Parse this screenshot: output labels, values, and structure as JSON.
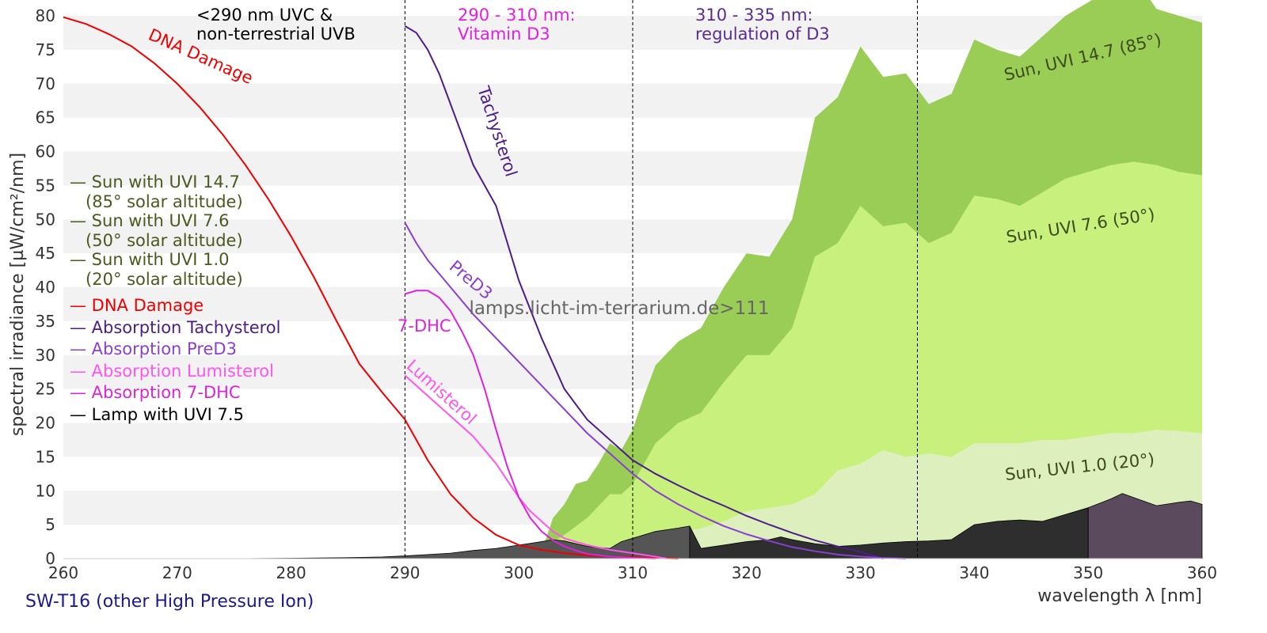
{
  "chart_data": {
    "type": "area",
    "x_range": [
      260,
      360
    ],
    "y_range": [
      0,
      80
    ],
    "x_ticks": [
      260,
      270,
      280,
      290,
      300,
      310,
      320,
      330,
      340,
      350,
      360
    ],
    "y_ticks": [
      0,
      5,
      10,
      15,
      20,
      25,
      30,
      35,
      40,
      45,
      50,
      55,
      60,
      65,
      70,
      75,
      80
    ],
    "xlabel": "wavelength λ [nm]",
    "ylabel": "spectral irradiance [µW/cm²/nm]",
    "grid": "horizontal alternating bands",
    "caption": "SW-T16 (other High Pressure Ion)",
    "watermark": "lamps.licht-im-terrarium.de>111",
    "vlines": [
      290,
      310,
      335
    ],
    "region_labels": [
      {
        "text": [
          "<290 nm UVC &",
          "non-terrestrial UVB"
        ],
        "color": "#000000"
      },
      {
        "text": [
          "290 - 310 nm:",
          "Vitamin D3"
        ],
        "color": "#e020e0"
      },
      {
        "text": [
          "310 - 335 nm:",
          "regulation of D3"
        ],
        "color": "#5a2d8c"
      }
    ],
    "legend": [
      {
        "text": "— Sun with UVI 14.7",
        "color": "#4a5a1e"
      },
      {
        "text": "   (85° solar altitude)",
        "color": "#4a5a1e"
      },
      {
        "text": "— Sun with UVI 7.6",
        "color": "#4a5a1e"
      },
      {
        "text": "   (50° solar altitude)",
        "color": "#4a5a1e"
      },
      {
        "text": "— Sun with UVI 1.0",
        "color": "#4a5a1e"
      },
      {
        "text": "   (20° solar altitude)",
        "color": "#4a5a1e"
      },
      {
        "text": "— DNA Damage",
        "color": "#ee0000"
      },
      {
        "text": "— Absorption Tachysterol",
        "color": "#4b1d8a"
      },
      {
        "text": "— Absorption PreD3",
        "color": "#8a3fd0"
      },
      {
        "text": "— Absorption Lumisterol",
        "color": "#ff55ee"
      },
      {
        "text": "— Absorption 7-DHC",
        "color": "#dd22dd"
      },
      {
        "text": "— Lamp with UVI 7.5",
        "color": "#000000"
      }
    ],
    "sun_areas": [
      {
        "name": "Sun, UVI 14.7 (85°)",
        "color": "#9acd55",
        "x": [
          302,
          303,
          304,
          305,
          306,
          307,
          308,
          309,
          310,
          311,
          312,
          314,
          316,
          318,
          320,
          322,
          324,
          326,
          328,
          330,
          332,
          334,
          336,
          338,
          340,
          342,
          344,
          346,
          348,
          350,
          352,
          354,
          356,
          358,
          360
        ],
        "y": [
          1,
          6,
          8,
          11,
          11.5,
          14,
          17,
          16,
          19,
          24,
          28.5,
          32,
          34,
          40,
          45,
          44.5,
          50,
          65,
          68,
          75.5,
          71,
          71.5,
          67,
          68.5,
          76.5,
          75,
          74,
          77,
          80,
          82,
          84,
          86,
          81,
          80,
          79
        ]
      },
      {
        "name": "Sun, UVI 7.6 (50°)",
        "color": "#c8f07c",
        "x": [
          298,
          300,
          302,
          304,
          306,
          308,
          309,
          310,
          312,
          314,
          316,
          318,
          320,
          322,
          324,
          326,
          328,
          330,
          332,
          334,
          336,
          338,
          340,
          342,
          344,
          346,
          348,
          350,
          352,
          354,
          356,
          358,
          360
        ],
        "y": [
          0,
          0.5,
          1.5,
          3.5,
          6,
          9.5,
          9.5,
          11,
          17,
          20,
          21.5,
          26,
          30,
          30,
          34,
          44.5,
          46.5,
          52,
          49,
          49.5,
          46.5,
          48,
          53.5,
          53,
          52,
          54,
          56,
          57,
          58,
          58.5,
          58,
          57,
          56.5
        ]
      },
      {
        "name": "Sun, UVI 1.0 (20°)",
        "color": "#dcefbc",
        "x": [
          300,
          302,
          304,
          306,
          308,
          310,
          312,
          314,
          316,
          318,
          320,
          322,
          324,
          326,
          328,
          330,
          332,
          334,
          336,
          338,
          340,
          342,
          344,
          346,
          348,
          350,
          352,
          354,
          356,
          358,
          360
        ],
        "y": [
          0,
          0.3,
          0.7,
          1.2,
          1.8,
          2.5,
          3.2,
          3.8,
          4.5,
          5.5,
          7,
          7.5,
          8,
          9.5,
          13,
          14,
          16,
          15,
          15.5,
          15,
          17,
          17,
          17,
          17.5,
          17.5,
          18,
          18.5,
          18.5,
          19,
          18.8,
          18.5
        ]
      }
    ],
    "sun_area_labels": [
      "Sun, UVI 14.7 (85°)",
      "Sun, UVI 7.6 (50°)",
      "Sun, UVI 1.0 (20°)"
    ],
    "lamp": {
      "name": "Lamp with UVI 7.5",
      "x": [
        275,
        280,
        285,
        288,
        290,
        292,
        294,
        296,
        298,
        300,
        302,
        303,
        304,
        306,
        308,
        309,
        310,
        312,
        314,
        315,
        316,
        318,
        320,
        322,
        323,
        324,
        326,
        328,
        330,
        332,
        334,
        336,
        338,
        340,
        342,
        344,
        346,
        348,
        350,
        352,
        353,
        354,
        356,
        358,
        359,
        360
      ],
      "y": [
        0,
        0.05,
        0.15,
        0.25,
        0.4,
        0.6,
        0.8,
        1.2,
        1.5,
        2,
        2.5,
        2.8,
        2.6,
        1.8,
        1.5,
        2.5,
        3,
        4,
        4.5,
        4.8,
        1.5,
        2,
        2.5,
        2.8,
        3.2,
        2.8,
        2.2,
        1.8,
        2,
        2.3,
        2.5,
        2.6,
        2.8,
        5,
        5.5,
        5.7,
        5.5,
        6.5,
        7.5,
        8.8,
        9.6,
        9,
        7.8,
        8.3,
        8.5,
        8
      ]
    },
    "curves": [
      {
        "name": "DNA Damage",
        "color": "#ee0000",
        "x": [
          260,
          262,
          264,
          266,
          268,
          270,
          272,
          274,
          276,
          278,
          280,
          282,
          284,
          286,
          288,
          290,
          292,
          294,
          296,
          298,
          300,
          302,
          304,
          306,
          308,
          310,
          312,
          314
        ],
        "y": [
          79.8,
          78.8,
          77.3,
          75.5,
          73,
          70,
          66.5,
          62.5,
          58,
          53,
          47.5,
          41.5,
          35,
          28.7,
          24.5,
          20.5,
          14.5,
          9.5,
          6,
          3.5,
          2,
          1.3,
          0.8,
          0.5,
          0.3,
          0.2,
          0.1,
          0
        ]
      },
      {
        "name": "Absorption Tachysterol",
        "color": "#4b1d8a",
        "x": [
          290,
          291,
          292,
          293,
          294,
          295,
          296,
          297,
          298,
          299,
          300,
          302,
          304,
          306,
          308,
          310,
          312,
          314,
          316,
          318,
          320,
          322,
          324,
          326,
          328,
          330,
          332
        ],
        "y": [
          78.5,
          77.5,
          75,
          71.5,
          67,
          62.5,
          58,
          55,
          52,
          46.5,
          41,
          32.5,
          25,
          20.5,
          17.5,
          14.5,
          12.5,
          10.8,
          9.2,
          7.8,
          6.3,
          5,
          3.8,
          2.7,
          1.8,
          1,
          0
        ]
      },
      {
        "name": "Absorption PreD3",
        "color": "#8a3fd0",
        "x": [
          290,
          291,
          292,
          293,
          294,
          296,
          298,
          300,
          302,
          304,
          306,
          308,
          310,
          312,
          314,
          316,
          318,
          320,
          322,
          324,
          326,
          328,
          330,
          332,
          334
        ],
        "y": [
          49.5,
          46.5,
          44,
          42,
          40,
          36,
          32.5,
          29,
          25.5,
          22,
          18.5,
          15.5,
          12.5,
          10,
          8,
          6.3,
          4.8,
          3.6,
          2.6,
          1.7,
          1.1,
          0.6,
          0.3,
          0.1,
          0
        ]
      },
      {
        "name": "Absorption Lumisterol",
        "color": "#ff55ee",
        "x": [
          290,
          291,
          292,
          293,
          294,
          295,
          296,
          297,
          298,
          299,
          300,
          301,
          302,
          303,
          304,
          306,
          308,
          310,
          312,
          313
        ],
        "y": [
          27,
          25.5,
          24,
          22.5,
          21,
          19.5,
          18,
          16,
          14,
          11.5,
          9,
          7,
          5.5,
          4,
          3,
          2,
          1.3,
          0.8,
          0.3,
          0
        ]
      },
      {
        "name": "Absorption 7-DHC",
        "color": "#dd22dd",
        "x": [
          290,
          291,
          292,
          293,
          294,
          295,
          296,
          297,
          298,
          299,
          300,
          301,
          302,
          303,
          304,
          305,
          306,
          308,
          310,
          312
        ],
        "y": [
          39,
          39.5,
          39.5,
          38.5,
          36.5,
          33.5,
          30,
          25,
          19,
          13.5,
          9,
          6,
          4,
          2.7,
          1.8,
          1.2,
          0.7,
          0.3,
          0.1,
          0
        ]
      }
    ],
    "curve_labels": [
      {
        "text": "DNA Damage",
        "color": "#ee0000"
      },
      {
        "text": "Tachysterol",
        "color": "#4b1d8a"
      },
      {
        "text": "PreD3",
        "color": "#8a3fd0"
      },
      {
        "text": "7-DHC",
        "color": "#dd22dd"
      },
      {
        "text": "Lumisterol",
        "color": "#ff55ee"
      }
    ]
  }
}
